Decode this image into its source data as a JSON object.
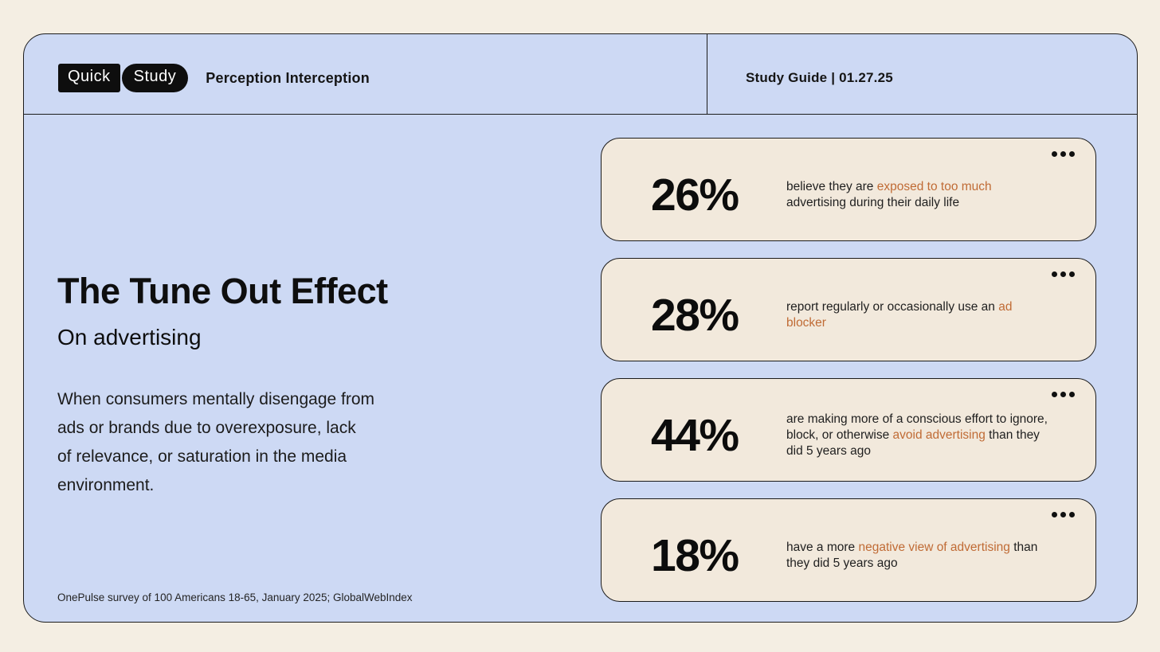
{
  "theme": {
    "page_background": "#f4eee3",
    "panel_blue": "#cdd9f4",
    "card_cream": "#f2e9dc",
    "border_color": "#1c1c1c",
    "accent_orange": "#c06b35"
  },
  "header": {
    "logo_part1": "Quick",
    "logo_part2": "Study",
    "title": "Perception Interception",
    "meta": "Study Guide | 01.27.25"
  },
  "left": {
    "title": "The Tune Out Effect",
    "subtitle": "On advertising",
    "definition_lines": [
      "When consumers mentally disengage from",
      "ads or brands due to overexposure, lack",
      "of relevance, or saturation in the media",
      "environment."
    ],
    "source": "OnePulse survey of 100 Americans 18-65, January 2025; GlobalWebIndex"
  },
  "cards": [
    {
      "stat": "26%",
      "menu_icon": "ellipsis-icon",
      "lines": [
        [
          {
            "t": "believe they are ",
            "h": false
          },
          {
            "t": "exposed to too much",
            "h": true
          }
        ],
        [
          {
            "t": "advertising during their daily life",
            "h": false
          }
        ]
      ]
    },
    {
      "stat": "28%",
      "menu_icon": "ellipsis-icon",
      "lines": [
        [
          {
            "t": "report regularly or occasionally use an ",
            "h": false
          },
          {
            "t": "ad",
            "h": true
          }
        ],
        [
          {
            "t": "blocker",
            "h": true
          }
        ]
      ]
    },
    {
      "stat": "44%",
      "menu_icon": "ellipsis-icon",
      "lines": [
        [
          {
            "t": "are making more of a conscious effort to ignore,",
            "h": false
          }
        ],
        [
          {
            "t": "block, or otherwise ",
            "h": false
          },
          {
            "t": "avoid advertising",
            "h": true
          },
          {
            "t": " than they",
            "h": false
          }
        ],
        [
          {
            "t": "did 5 years ago",
            "h": false
          }
        ]
      ]
    },
    {
      "stat": "18%",
      "menu_icon": "ellipsis-icon",
      "lines": [
        [
          {
            "t": "have a more ",
            "h": false
          },
          {
            "t": "negative view of advertising",
            "h": true
          },
          {
            "t": " than",
            "h": false
          }
        ],
        [
          {
            "t": "they did 5 years ago",
            "h": false
          }
        ]
      ]
    }
  ]
}
